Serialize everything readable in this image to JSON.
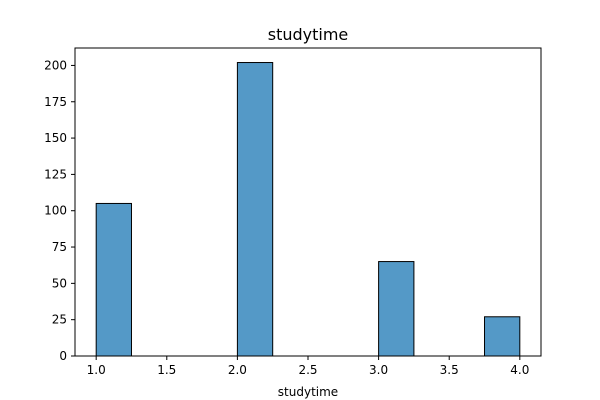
{
  "chart_data": {
    "type": "bar",
    "title": "studytime",
    "xlabel": "studytime",
    "ylabel": "",
    "bars": [
      {
        "x0": 1.0,
        "x1": 1.25,
        "count": 105
      },
      {
        "x0": 2.0,
        "x1": 2.25,
        "count": 202
      },
      {
        "x0": 3.0,
        "x1": 3.25,
        "count": 65
      },
      {
        "x0": 3.75,
        "x1": 4.0,
        "count": 27
      }
    ],
    "xlim": [
      0.85,
      4.15
    ],
    "ylim": [
      0,
      212
    ],
    "xticks": [
      1.0,
      1.5,
      2.0,
      2.5,
      3.0,
      3.5,
      4.0
    ],
    "xtick_labels": [
      "1.0",
      "1.5",
      "2.0",
      "2.5",
      "3.0",
      "3.5",
      "4.0"
    ],
    "yticks": [
      0,
      25,
      50,
      75,
      100,
      125,
      150,
      175,
      200
    ],
    "ytick_labels": [
      "0",
      "25",
      "50",
      "75",
      "100",
      "125",
      "150",
      "175",
      "200"
    ],
    "bar_color": "#5499c7",
    "edge_color": "#000000",
    "grid": false,
    "legend": false
  }
}
